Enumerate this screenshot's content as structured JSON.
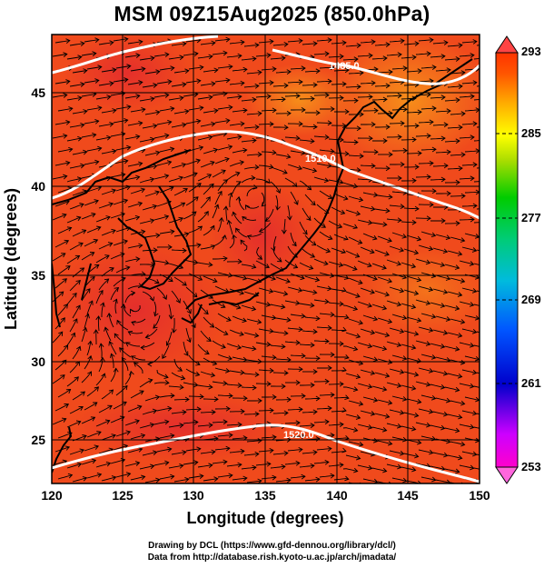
{
  "title": "MSM 09Z15Aug2025 (850.0hPa)",
  "axes": {
    "xlabel": "Longitude (degrees)",
    "ylabel": "Latitude  (degrees)",
    "x_ticks": [
      "120",
      "125",
      "130",
      "135",
      "140",
      "145",
      "150"
    ],
    "y_ticks": [
      "25",
      "30",
      "35",
      "40",
      "45"
    ],
    "xlim": [
      120,
      150
    ],
    "ylim": [
      22.4,
      47.6
    ]
  },
  "colorbar": {
    "ticks": [
      "293",
      "285",
      "277",
      "269",
      "261",
      "253"
    ],
    "range": [
      253,
      293
    ],
    "colors": [
      "#ff00cc",
      "#cc00ff",
      "#0000cc",
      "#0044ff",
      "#0099ff",
      "#00cccc",
      "#00cc66",
      "#00cc00",
      "#88dd00",
      "#ffff00",
      "#ffcc00",
      "#ff9900",
      "#ff6600",
      "#ff3300"
    ]
  },
  "contour_labels": [
    "1485.0",
    "1510.0",
    "1520.0"
  ],
  "credits": {
    "line1": "Drawing by DCL (https://www.gfd-dennou.org/library/dcl/)",
    "line2": "Data from http://database.rish.kyoto-u.ac.jp/arch/jmadata/"
  },
  "colors": {
    "field_main": "#f04a1c",
    "field_cool": "#f57a1a",
    "field_warm": "#e8322a",
    "contour": "#ffffff"
  }
}
